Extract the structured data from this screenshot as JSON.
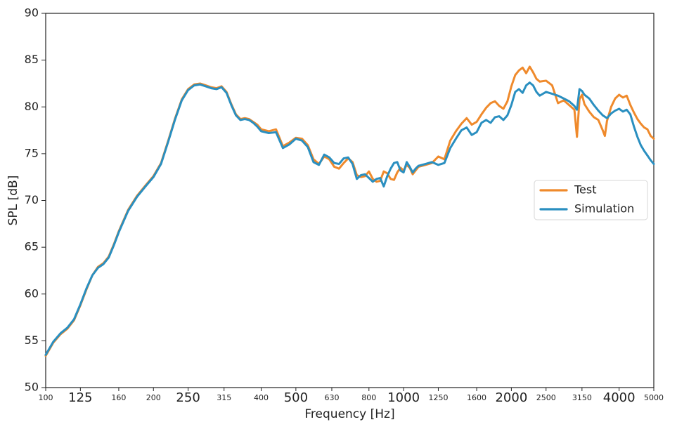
{
  "chart_data": {
    "type": "line",
    "title": "",
    "xlabel": "Frequency [Hz]",
    "ylabel": "SPL [dB]",
    "x_scale": "log",
    "xlim": [
      100,
      5000
    ],
    "ylim": [
      50,
      90
    ],
    "grid": false,
    "legend_position": "right",
    "x_ticks": [
      {
        "value": 100,
        "label": "100",
        "emphasis": "small"
      },
      {
        "value": 125,
        "label": "125",
        "emphasis": "large"
      },
      {
        "value": 160,
        "label": "160",
        "emphasis": "small"
      },
      {
        "value": 200,
        "label": "200",
        "emphasis": "small"
      },
      {
        "value": 250,
        "label": "250",
        "emphasis": "large"
      },
      {
        "value": 315,
        "label": "315",
        "emphasis": "small"
      },
      {
        "value": 400,
        "label": "400",
        "emphasis": "small"
      },
      {
        "value": 500,
        "label": "500",
        "emphasis": "large"
      },
      {
        "value": 630,
        "label": "630",
        "emphasis": "small"
      },
      {
        "value": 800,
        "label": "800",
        "emphasis": "small"
      },
      {
        "value": 1000,
        "label": "1000",
        "emphasis": "large"
      },
      {
        "value": 1250,
        "label": "1250",
        "emphasis": "small"
      },
      {
        "value": 1600,
        "label": "1600",
        "emphasis": "small"
      },
      {
        "value": 2000,
        "label": "2000",
        "emphasis": "large"
      },
      {
        "value": 2500,
        "label": "2500",
        "emphasis": "small"
      },
      {
        "value": 3150,
        "label": "3150",
        "emphasis": "small"
      },
      {
        "value": 4000,
        "label": "4000",
        "emphasis": "large"
      },
      {
        "value": 5000,
        "label": "5000",
        "emphasis": "small"
      }
    ],
    "y_ticks": [
      {
        "value": 50,
        "label": "50"
      },
      {
        "value": 55,
        "label": "55"
      },
      {
        "value": 60,
        "label": "60"
      },
      {
        "value": 65,
        "label": "65"
      },
      {
        "value": 70,
        "label": "70"
      },
      {
        "value": 75,
        "label": "75"
      },
      {
        "value": 80,
        "label": "80"
      },
      {
        "value": 85,
        "label": "85"
      },
      {
        "value": 90,
        "label": "90"
      }
    ],
    "series": [
      {
        "name": "Test",
        "color": "#ef8a2c",
        "points": [
          [
            100,
            53.4
          ],
          [
            105,
            54.8
          ],
          [
            110,
            55.7
          ],
          [
            115,
            56.3
          ],
          [
            120,
            57.2
          ],
          [
            125,
            58.8
          ],
          [
            130,
            60.5
          ],
          [
            135,
            62.0
          ],
          [
            140,
            62.9
          ],
          [
            145,
            63.3
          ],
          [
            150,
            64.0
          ],
          [
            155,
            65.3
          ],
          [
            160,
            66.7
          ],
          [
            170,
            69.0
          ],
          [
            180,
            70.5
          ],
          [
            190,
            71.6
          ],
          [
            200,
            72.6
          ],
          [
            210,
            74.0
          ],
          [
            220,
            76.4
          ],
          [
            230,
            78.8
          ],
          [
            240,
            80.8
          ],
          [
            250,
            81.9
          ],
          [
            260,
            82.4
          ],
          [
            270,
            82.5
          ],
          [
            280,
            82.3
          ],
          [
            290,
            82.1
          ],
          [
            300,
            82.0
          ],
          [
            310,
            82.2
          ],
          [
            320,
            81.6
          ],
          [
            330,
            80.3
          ],
          [
            340,
            79.2
          ],
          [
            350,
            78.7
          ],
          [
            360,
            78.8
          ],
          [
            370,
            78.7
          ],
          [
            380,
            78.4
          ],
          [
            390,
            78.1
          ],
          [
            400,
            77.6
          ],
          [
            420,
            77.4
          ],
          [
            440,
            77.6
          ],
          [
            460,
            75.8
          ],
          [
            480,
            76.2
          ],
          [
            500,
            76.7
          ],
          [
            520,
            76.6
          ],
          [
            540,
            75.9
          ],
          [
            560,
            74.4
          ],
          [
            580,
            73.9
          ],
          [
            600,
            74.7
          ],
          [
            620,
            74.4
          ],
          [
            640,
            73.6
          ],
          [
            660,
            73.4
          ],
          [
            680,
            74.0
          ],
          [
            700,
            74.5
          ],
          [
            720,
            74.1
          ],
          [
            740,
            72.7
          ],
          [
            760,
            72.5
          ],
          [
            780,
            72.6
          ],
          [
            800,
            73.1
          ],
          [
            820,
            72.3
          ],
          [
            840,
            72.0
          ],
          [
            860,
            72.1
          ],
          [
            880,
            73.1
          ],
          [
            900,
            72.9
          ],
          [
            920,
            72.3
          ],
          [
            940,
            72.2
          ],
          [
            960,
            73.0
          ],
          [
            980,
            73.5
          ],
          [
            1000,
            73.2
          ],
          [
            1020,
            73.8
          ],
          [
            1040,
            73.5
          ],
          [
            1060,
            72.8
          ],
          [
            1080,
            73.2
          ],
          [
            1100,
            73.6
          ],
          [
            1150,
            73.8
          ],
          [
            1200,
            74.0
          ],
          [
            1250,
            74.7
          ],
          [
            1300,
            74.4
          ],
          [
            1350,
            76.4
          ],
          [
            1400,
            77.4
          ],
          [
            1450,
            78.2
          ],
          [
            1500,
            78.8
          ],
          [
            1550,
            78.1
          ],
          [
            1600,
            78.4
          ],
          [
            1650,
            79.2
          ],
          [
            1700,
            79.9
          ],
          [
            1750,
            80.4
          ],
          [
            1800,
            80.6
          ],
          [
            1850,
            80.1
          ],
          [
            1900,
            79.8
          ],
          [
            1950,
            80.6
          ],
          [
            2000,
            82.2
          ],
          [
            2050,
            83.4
          ],
          [
            2100,
            83.9
          ],
          [
            2150,
            84.2
          ],
          [
            2200,
            83.6
          ],
          [
            2250,
            84.3
          ],
          [
            2300,
            83.7
          ],
          [
            2350,
            83.0
          ],
          [
            2400,
            82.7
          ],
          [
            2500,
            82.8
          ],
          [
            2600,
            82.3
          ],
          [
            2700,
            80.4
          ],
          [
            2800,
            80.7
          ],
          [
            2900,
            80.2
          ],
          [
            3000,
            79.7
          ],
          [
            3050,
            76.8
          ],
          [
            3100,
            80.8
          ],
          [
            3150,
            81.3
          ],
          [
            3200,
            80.3
          ],
          [
            3300,
            79.5
          ],
          [
            3400,
            78.9
          ],
          [
            3500,
            78.6
          ],
          [
            3600,
            77.5
          ],
          [
            3650,
            76.9
          ],
          [
            3700,
            78.5
          ],
          [
            3800,
            80.0
          ],
          [
            3900,
            80.9
          ],
          [
            4000,
            81.3
          ],
          [
            4100,
            81.0
          ],
          [
            4200,
            81.2
          ],
          [
            4300,
            80.2
          ],
          [
            4400,
            79.4
          ],
          [
            4500,
            78.7
          ],
          [
            4600,
            78.2
          ],
          [
            4700,
            77.8
          ],
          [
            4800,
            77.6
          ],
          [
            4900,
            76.9
          ],
          [
            5000,
            76.6
          ]
        ]
      },
      {
        "name": "Simulation",
        "color": "#2a8fc0",
        "points": [
          [
            100,
            53.5
          ],
          [
            105,
            54.9
          ],
          [
            110,
            55.8
          ],
          [
            115,
            56.4
          ],
          [
            120,
            57.3
          ],
          [
            125,
            58.9
          ],
          [
            130,
            60.6
          ],
          [
            135,
            62.0
          ],
          [
            140,
            62.8
          ],
          [
            145,
            63.2
          ],
          [
            150,
            63.9
          ],
          [
            155,
            65.2
          ],
          [
            160,
            66.6
          ],
          [
            170,
            68.9
          ],
          [
            180,
            70.4
          ],
          [
            190,
            71.5
          ],
          [
            200,
            72.5
          ],
          [
            210,
            73.9
          ],
          [
            220,
            76.3
          ],
          [
            230,
            78.7
          ],
          [
            240,
            80.7
          ],
          [
            250,
            81.8
          ],
          [
            260,
            82.3
          ],
          [
            270,
            82.4
          ],
          [
            280,
            82.2
          ],
          [
            290,
            82.0
          ],
          [
            300,
            81.9
          ],
          [
            310,
            82.1
          ],
          [
            320,
            81.5
          ],
          [
            330,
            80.2
          ],
          [
            340,
            79.1
          ],
          [
            350,
            78.6
          ],
          [
            360,
            78.7
          ],
          [
            370,
            78.6
          ],
          [
            380,
            78.3
          ],
          [
            390,
            77.9
          ],
          [
            400,
            77.4
          ],
          [
            420,
            77.2
          ],
          [
            440,
            77.3
          ],
          [
            460,
            75.6
          ],
          [
            480,
            76.0
          ],
          [
            500,
            76.6
          ],
          [
            520,
            76.4
          ],
          [
            540,
            75.7
          ],
          [
            560,
            74.1
          ],
          [
            580,
            73.8
          ],
          [
            600,
            74.9
          ],
          [
            620,
            74.6
          ],
          [
            640,
            74.0
          ],
          [
            660,
            73.9
          ],
          [
            680,
            74.5
          ],
          [
            700,
            74.6
          ],
          [
            720,
            73.9
          ],
          [
            740,
            72.3
          ],
          [
            760,
            72.7
          ],
          [
            780,
            72.8
          ],
          [
            800,
            72.4
          ],
          [
            820,
            72.0
          ],
          [
            840,
            72.3
          ],
          [
            860,
            72.4
          ],
          [
            880,
            71.5
          ],
          [
            900,
            72.6
          ],
          [
            920,
            73.4
          ],
          [
            940,
            74.0
          ],
          [
            960,
            74.1
          ],
          [
            980,
            73.2
          ],
          [
            1000,
            73.0
          ],
          [
            1020,
            74.1
          ],
          [
            1040,
            73.6
          ],
          [
            1060,
            73.0
          ],
          [
            1080,
            73.4
          ],
          [
            1100,
            73.7
          ],
          [
            1150,
            73.9
          ],
          [
            1200,
            74.1
          ],
          [
            1250,
            73.8
          ],
          [
            1300,
            74.0
          ],
          [
            1350,
            75.6
          ],
          [
            1400,
            76.6
          ],
          [
            1450,
            77.5
          ],
          [
            1500,
            77.8
          ],
          [
            1550,
            77.0
          ],
          [
            1600,
            77.3
          ],
          [
            1650,
            78.3
          ],
          [
            1700,
            78.6
          ],
          [
            1750,
            78.3
          ],
          [
            1800,
            78.9
          ],
          [
            1850,
            79.0
          ],
          [
            1900,
            78.6
          ],
          [
            1950,
            79.1
          ],
          [
            2000,
            80.2
          ],
          [
            2050,
            81.6
          ],
          [
            2100,
            81.9
          ],
          [
            2150,
            81.5
          ],
          [
            2200,
            82.3
          ],
          [
            2250,
            82.6
          ],
          [
            2300,
            82.3
          ],
          [
            2350,
            81.6
          ],
          [
            2400,
            81.2
          ],
          [
            2500,
            81.6
          ],
          [
            2600,
            81.4
          ],
          [
            2700,
            81.2
          ],
          [
            2800,
            80.9
          ],
          [
            2900,
            80.6
          ],
          [
            3000,
            80.1
          ],
          [
            3050,
            79.7
          ],
          [
            3100,
            81.9
          ],
          [
            3150,
            81.7
          ],
          [
            3200,
            81.3
          ],
          [
            3300,
            80.9
          ],
          [
            3400,
            80.2
          ],
          [
            3500,
            79.6
          ],
          [
            3600,
            79.1
          ],
          [
            3700,
            78.8
          ],
          [
            3800,
            79.3
          ],
          [
            3900,
            79.6
          ],
          [
            4000,
            79.8
          ],
          [
            4100,
            79.5
          ],
          [
            4200,
            79.7
          ],
          [
            4300,
            79.2
          ],
          [
            4400,
            77.9
          ],
          [
            4500,
            76.8
          ],
          [
            4600,
            75.9
          ],
          [
            4700,
            75.3
          ],
          [
            4800,
            74.8
          ],
          [
            4900,
            74.3
          ],
          [
            5000,
            73.9
          ]
        ]
      }
    ]
  }
}
